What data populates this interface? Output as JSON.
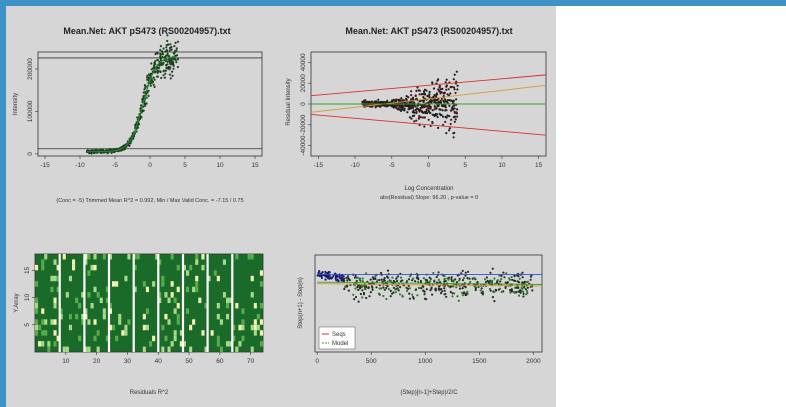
{
  "colors": {
    "frame": "#3d92c6",
    "panel": "#d6d6d6",
    "heat_bg": "#1a6b2a"
  },
  "chart_data": [
    {
      "type": "scatter",
      "title": "Mean.Net:  AKT pS473 (RS00204957).txt",
      "ylabel": "Intensity",
      "subtitle": "(Conc = -5) Trimmed Mean R^2 = 0.992,  Min / Max Valid Conc. = -7.15 / 0.75",
      "xlim": [
        -16,
        16
      ],
      "ylim": [
        -5000,
        240000
      ],
      "x_ticks": [
        "-15",
        "-10",
        "-5",
        "0",
        "5",
        "10",
        "15"
      ],
      "y_ticks": [
        "0",
        "100000",
        "200000"
      ],
      "hlines": [
        12000,
        226000
      ],
      "fit_curve": {
        "bottom": 5000,
        "top": 230000,
        "mid": -1,
        "slope": 1.1
      },
      "point_x_range": [
        -9,
        4
      ]
    },
    {
      "type": "scatter",
      "title": "Mean.Net:  AKT pS473 (RS00204957).txt",
      "xlabel": "Log Concentration",
      "ylabel": "Residual Intensity",
      "subtitle": "abs(Residual) Slope: 96.20 , p-value = 0",
      "xlim": [
        -16,
        16
      ],
      "ylim": [
        -50000,
        50000
      ],
      "x_ticks": [
        "-15",
        "-10",
        "-5",
        "0",
        "5",
        "10",
        "15"
      ],
      "y_ticks": [
        "-40000",
        "-20000",
        "0",
        "20000",
        "40000"
      ],
      "lines": [
        {
          "color": "#d83030",
          "x": [
            -16,
            16
          ],
          "y": [
            -10000,
            -30000
          ]
        },
        {
          "color": "#d83030",
          "x": [
            -16,
            16
          ],
          "y": [
            8000,
            28000
          ]
        },
        {
          "color": "#d89a30",
          "x": [
            -16,
            16
          ],
          "y": [
            -8000,
            18000
          ]
        },
        {
          "color": "#30a030",
          "x": [
            -16,
            16
          ],
          "y": [
            0,
            0
          ]
        }
      ]
    },
    {
      "type": "heatmap",
      "xlabel": "Residuals R^2",
      "ylabel": "Y.Array",
      "x_ticks": [
        "10",
        "20",
        "30",
        "40",
        "50",
        "60",
        "70"
      ],
      "y_ticks": [
        "5",
        "10",
        "15"
      ],
      "xlim": [
        0,
        74
      ],
      "column_breaks": [
        8,
        16,
        24,
        32,
        40,
        48,
        56,
        64
      ]
    },
    {
      "type": "scatter",
      "xlabel": "(Step)[n-1]+Step)/2/C",
      "ylabel": "Step(n+1) - Step(n)",
      "xlim": [
        -20,
        2080
      ],
      "ylim": [
        -1,
        0.25
      ],
      "x_ticks": [
        "0",
        "500",
        "1000",
        "1500",
        "2000"
      ],
      "y_ticks": [],
      "lines": [
        {
          "color": "#3050d8",
          "x": [
            0,
            2080
          ],
          "y": [
            0,
            0
          ]
        },
        {
          "color": "#d89a30",
          "x": [
            0,
            2080
          ],
          "y": [
            -0.12,
            -0.15
          ]
        },
        {
          "color": "#30a030",
          "x": [
            0,
            2080
          ],
          "y": [
            -0.1,
            -0.13
          ]
        }
      ],
      "legend": {
        "position": "bottom-left",
        "entries": [
          {
            "label": "Seqs",
            "color": "#d83030"
          },
          {
            "label": "Model",
            "color": "#30a030"
          }
        ]
      }
    }
  ]
}
